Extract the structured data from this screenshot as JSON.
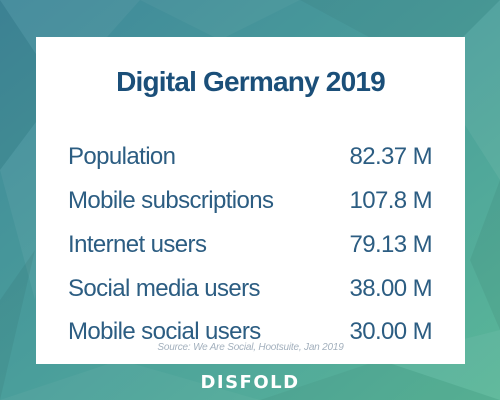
{
  "colors": {
    "background_top_left": "#3f8a9a",
    "background_bottom_right": "#56b49a",
    "card": "#ffffff",
    "title": "#1b4f79",
    "row_text": "#2c5d82",
    "source_text": "#a3b0bd",
    "logo": "#ffffff"
  },
  "card": {
    "title": "Digital Germany 2019",
    "rows": [
      {
        "label": "Population",
        "value": "82.37 M"
      },
      {
        "label": "Mobile subscriptions",
        "value": "107.8 M"
      },
      {
        "label": "Internet users",
        "value": "79.13 M"
      },
      {
        "label": "Social media users",
        "value": "38.00 M"
      },
      {
        "label": "Mobile social users",
        "value": "30.00 M"
      }
    ],
    "source": "Source: We Are Social, Hootsuite, Jan 2019"
  },
  "logo": {
    "text": "DISFOLD"
  }
}
